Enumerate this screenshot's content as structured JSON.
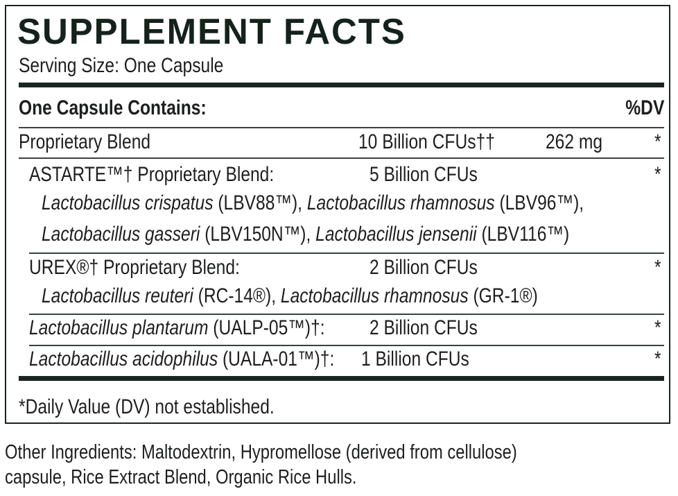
{
  "label": {
    "title": "SUPPLEMENT FACTS",
    "serving_size": "Serving Size: One Capsule",
    "header_left": "One Capsule Contains:",
    "header_right": "%DV",
    "rows": [
      {
        "name": "Proprietary Blend",
        "amount": "10 Billion CFUs††",
        "weight": "262 mg",
        "dv": "*"
      },
      {
        "name": "ASTARTE™† Proprietary Blend:",
        "amount": "5 Billion CFUs",
        "dv": "*",
        "lines": [
          [
            [
              "Lactobacillus crispatus",
              "i"
            ],
            [
              " (LBV88™), ",
              ""
            ],
            [
              "Lactobacillus rhamnosus",
              "i"
            ],
            [
              " (LBV96™),",
              ""
            ]
          ],
          [
            [
              "Lactobacillus gasseri",
              "i"
            ],
            [
              " (LBV150N™), ",
              ""
            ],
            [
              "Lactobacillus jensenii",
              "i"
            ],
            [
              "  (LBV116™)",
              ""
            ]
          ]
        ]
      },
      {
        "name": "UREX®† Proprietary Blend:",
        "amount": "2 Billion CFUs",
        "dv": "*",
        "lines": [
          [
            [
              "Lactobacillus reuteri",
              "i"
            ],
            [
              " (RC-14®), ",
              ""
            ],
            [
              "Lactobacillus rhamnosus",
              "i"
            ],
            [
              " (GR-1®)",
              ""
            ]
          ]
        ]
      },
      {
        "name_italic": "Lactobacillus plantarum",
        "name_rest": " (UALP-05™)†:",
        "amount": "2 Billion CFUs",
        "dv": "*"
      },
      {
        "name_italic": "Lactobacillus acidophilus",
        "name_rest": " (UALA-01™)†:",
        "amount": "1 Billion CFUs",
        "dv": "*"
      }
    ],
    "footnote": "*Daily Value (DV) not established."
  },
  "other_ingredients": {
    "line1": "Other Ingredients: Maltodextrin, Hypromellose (derived from cellulose)",
    "line2": "capsule, Rice Extract Blend, Organic Rice Hulls."
  },
  "colors": {
    "ink": "#1a2420"
  }
}
